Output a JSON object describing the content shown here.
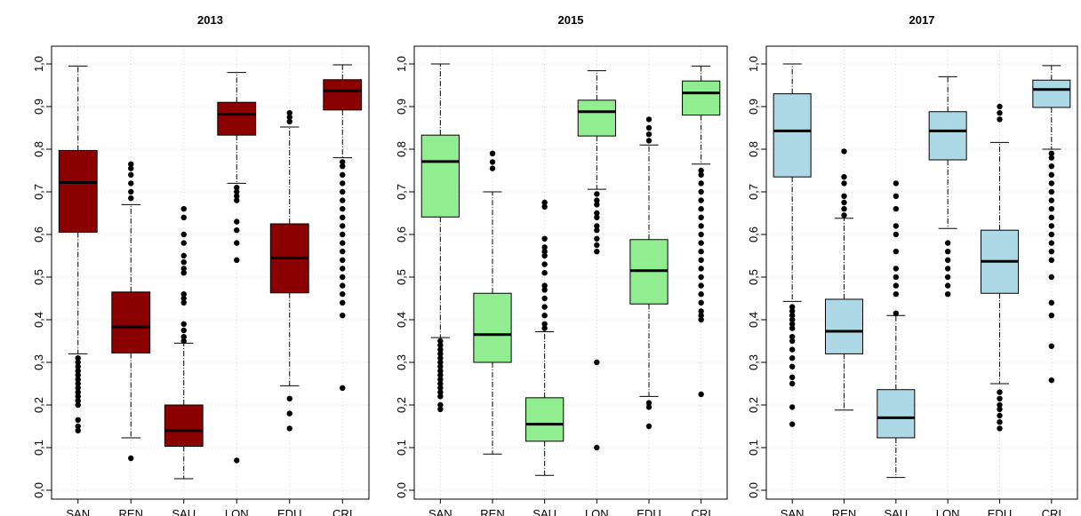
{
  "chart_data": [
    {
      "type": "boxplot",
      "title": "2013",
      "color": "#8b0000",
      "ylim": [
        0,
        1
      ],
      "ticks": [
        "0,0",
        "0,1",
        "0,2",
        "0,3",
        "0,4",
        "0,5",
        "0,6",
        "0,7",
        "0,8",
        "0,9",
        "1,0"
      ],
      "grid": true,
      "categories": [
        "SAN",
        "REN",
        "SAU",
        "LON",
        "EDU",
        "CRI"
      ],
      "boxes": [
        {
          "whisker_low": 0.32,
          "q1": 0.605,
          "median": 0.722,
          "q3": 0.797,
          "whisker_high": 0.995,
          "outliers": [
            0.14,
            0.15,
            0.165,
            0.2,
            0.21,
            0.22,
            0.23,
            0.24,
            0.25,
            0.26,
            0.27,
            0.28,
            0.29,
            0.3,
            0.31
          ]
        },
        {
          "whisker_low": 0.123,
          "q1": 0.322,
          "median": 0.383,
          "q3": 0.465,
          "whisker_high": 0.67,
          "outliers": [
            0.075,
            0.685,
            0.7,
            0.72,
            0.74,
            0.755,
            0.765
          ]
        },
        {
          "whisker_low": 0.027,
          "q1": 0.103,
          "median": 0.14,
          "q3": 0.2,
          "whisker_high": 0.345,
          "outliers": [
            0.35,
            0.36,
            0.375,
            0.39,
            0.44,
            0.45,
            0.46,
            0.51,
            0.52,
            0.535,
            0.55,
            0.58,
            0.6,
            0.64,
            0.66
          ]
        },
        {
          "whisker_low": 0.72,
          "q1": 0.833,
          "median": 0.882,
          "q3": 0.91,
          "whisker_high": 0.98,
          "outliers": [
            0.07,
            0.54,
            0.58,
            0.61,
            0.63,
            0.68,
            0.69,
            0.7,
            0.71
          ]
        },
        {
          "whisker_low": 0.245,
          "q1": 0.463,
          "median": 0.545,
          "q3": 0.625,
          "whisker_high": 0.852,
          "outliers": [
            0.145,
            0.18,
            0.215,
            0.865,
            0.875,
            0.885
          ]
        },
        {
          "whisker_low": 0.78,
          "q1": 0.892,
          "median": 0.937,
          "q3": 0.963,
          "whisker_high": 0.998,
          "outliers": [
            0.24,
            0.41,
            0.44,
            0.46,
            0.48,
            0.5,
            0.52,
            0.54,
            0.56,
            0.58,
            0.6,
            0.62,
            0.64,
            0.66,
            0.68,
            0.7,
            0.72,
            0.74,
            0.76,
            0.77
          ]
        }
      ]
    },
    {
      "type": "boxplot",
      "title": "2015",
      "color": "#90ee90",
      "ylim": [
        0,
        1
      ],
      "ticks": [
        "0,0",
        "0,1",
        "0,2",
        "0,3",
        "0,4",
        "0,5",
        "0,6",
        "0,7",
        "0,8",
        "0,9",
        "1,0"
      ],
      "grid": true,
      "categories": [
        "SAN",
        "REN",
        "SAU",
        "LON",
        "EDU",
        "CRI"
      ],
      "boxes": [
        {
          "whisker_low": 0.358,
          "q1": 0.641,
          "median": 0.771,
          "q3": 0.833,
          "whisker_high": 1.0,
          "outliers": [
            0.19,
            0.2,
            0.22,
            0.23,
            0.24,
            0.25,
            0.26,
            0.27,
            0.28,
            0.29,
            0.3,
            0.31,
            0.32,
            0.33,
            0.34,
            0.35
          ]
        },
        {
          "whisker_low": 0.085,
          "q1": 0.3,
          "median": 0.365,
          "q3": 0.462,
          "whisker_high": 0.7,
          "outliers": [
            0.755,
            0.77,
            0.79
          ]
        },
        {
          "whisker_low": 0.035,
          "q1": 0.115,
          "median": 0.155,
          "q3": 0.217,
          "whisker_high": 0.372,
          "outliers": [
            0.38,
            0.39,
            0.41,
            0.43,
            0.45,
            0.47,
            0.48,
            0.51,
            0.53,
            0.55,
            0.56,
            0.57,
            0.59,
            0.665,
            0.675
          ]
        },
        {
          "whisker_low": 0.706,
          "q1": 0.831,
          "median": 0.888,
          "q3": 0.915,
          "whisker_high": 0.984,
          "outliers": [
            0.1,
            0.3,
            0.56,
            0.575,
            0.59,
            0.61,
            0.62,
            0.64,
            0.65,
            0.67,
            0.68,
            0.695
          ]
        },
        {
          "whisker_low": 0.22,
          "q1": 0.437,
          "median": 0.515,
          "q3": 0.588,
          "whisker_high": 0.81,
          "outliers": [
            0.15,
            0.195,
            0.205,
            0.82,
            0.835,
            0.85,
            0.87
          ]
        },
        {
          "whisker_low": 0.765,
          "q1": 0.88,
          "median": 0.932,
          "q3": 0.96,
          "whisker_high": 0.995,
          "outliers": [
            0.225,
            0.4,
            0.41,
            0.42,
            0.44,
            0.46,
            0.48,
            0.5,
            0.52,
            0.54,
            0.56,
            0.58,
            0.6,
            0.62,
            0.64,
            0.66,
            0.68,
            0.7,
            0.72,
            0.74,
            0.75
          ]
        }
      ]
    },
    {
      "type": "boxplot",
      "title": "2017",
      "color": "#add8e6",
      "ylim": [
        0,
        1
      ],
      "ticks": [
        "0,0",
        "0,1",
        "0,2",
        "0,3",
        "0,4",
        "0,5",
        "0,6",
        "0,7",
        "0,8",
        "0,9",
        "1,0"
      ],
      "grid": true,
      "categories": [
        "SAN",
        "REN",
        "SAU",
        "LON",
        "EDU",
        "CRI"
      ],
      "boxes": [
        {
          "whisker_low": 0.443,
          "q1": 0.735,
          "median": 0.843,
          "q3": 0.93,
          "whisker_high": 1.0,
          "outliers": [
            0.155,
            0.195,
            0.25,
            0.265,
            0.29,
            0.31,
            0.33,
            0.35,
            0.36,
            0.38,
            0.39,
            0.4,
            0.41,
            0.42,
            0.43
          ]
        },
        {
          "whisker_low": 0.188,
          "q1": 0.32,
          "median": 0.373,
          "q3": 0.448,
          "whisker_high": 0.638,
          "outliers": [
            0.645,
            0.66,
            0.675,
            0.69,
            0.72,
            0.735,
            0.795
          ]
        },
        {
          "whisker_low": 0.03,
          "q1": 0.123,
          "median": 0.17,
          "q3": 0.236,
          "whisker_high": 0.41,
          "outliers": [
            0.415,
            0.46,
            0.48,
            0.5,
            0.52,
            0.56,
            0.6,
            0.62,
            0.66,
            0.69,
            0.72
          ]
        },
        {
          "whisker_low": 0.614,
          "q1": 0.775,
          "median": 0.843,
          "q3": 0.888,
          "whisker_high": 0.97,
          "outliers": [
            0.46,
            0.48,
            0.5,
            0.52,
            0.54,
            0.56,
            0.58
          ]
        },
        {
          "whisker_low": 0.25,
          "q1": 0.462,
          "median": 0.537,
          "q3": 0.61,
          "whisker_high": 0.816,
          "outliers": [
            0.145,
            0.16,
            0.175,
            0.19,
            0.2,
            0.215,
            0.23,
            0.87,
            0.885,
            0.9
          ]
        },
        {
          "whisker_low": 0.8,
          "q1": 0.898,
          "median": 0.94,
          "q3": 0.962,
          "whisker_high": 0.996,
          "outliers": [
            0.258,
            0.338,
            0.41,
            0.44,
            0.5,
            0.54,
            0.56,
            0.58,
            0.6,
            0.62,
            0.64,
            0.66,
            0.68,
            0.7,
            0.72,
            0.74,
            0.76,
            0.78,
            0.79
          ]
        }
      ]
    }
  ]
}
